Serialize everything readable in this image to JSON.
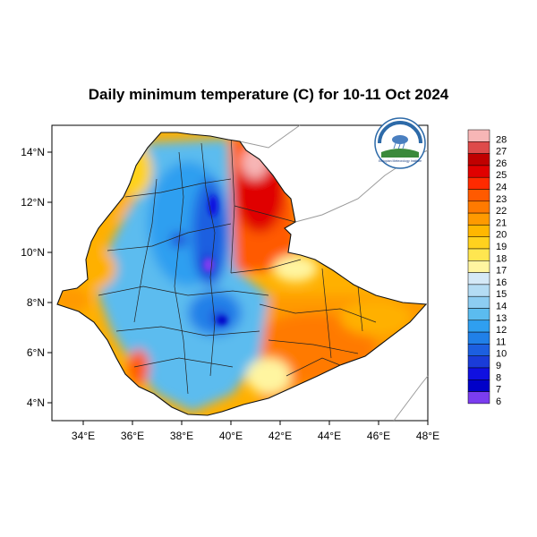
{
  "title": "Daily minimum temperature (C) for 10-11 Oct 2024",
  "map": {
    "x_ticks": [
      "34°E",
      "36°E",
      "38°E",
      "40°E",
      "42°E",
      "44°E",
      "46°E",
      "48°E"
    ],
    "y_ticks": [
      "14°N",
      "12°N",
      "10°N",
      "8°N",
      "6°N",
      "4°N"
    ],
    "x_range_deg": [
      32.7,
      48.2
    ],
    "y_range_deg": [
      3.2,
      15.0
    ]
  },
  "colorbar": {
    "levels": [
      "28",
      "27",
      "26",
      "25",
      "24",
      "23",
      "22",
      "21",
      "20",
      "19",
      "18",
      "17",
      "16",
      "15",
      "14",
      "13",
      "12",
      "11",
      "10",
      "9",
      "8",
      "7",
      "6"
    ],
    "colors": [
      "#f7b6b6",
      "#de4a4a",
      "#c00000",
      "#e00000",
      "#ff2a00",
      "#ff5a00",
      "#ff7a00",
      "#ff9a00",
      "#ffb700",
      "#ffd21e",
      "#ffe650",
      "#fff5a0",
      "#d5e9f7",
      "#b4dcf4",
      "#8dcdf2",
      "#5bbcef",
      "#2f9ff0",
      "#2080e8",
      "#1c5fe0",
      "#1a3cd8",
      "#1010e0",
      "#0000c8",
      "#7b3df0"
    ]
  },
  "logo": {
    "icon": "ethiopian-meteorology-institute-logo",
    "text": "Ethiopian Meteorology Institute"
  }
}
